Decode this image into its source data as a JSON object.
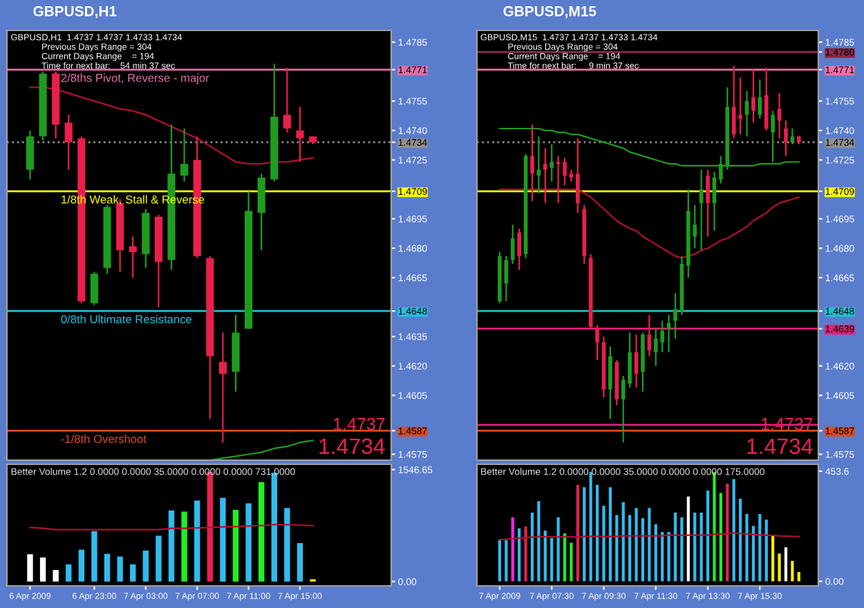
{
  "chart_data": [
    {
      "type": "candlestick",
      "title": "GBPUSD,H1",
      "subtitle": "GBPUSD,H1  1.4737 1.4737 1.4733 1.4734",
      "annotations": [
        "Previous Days Range = 304",
        "Current Days Range    = 194",
        "Time for next bar:    54 min 37 sec",
        "1.4737",
        "1.4734"
      ],
      "categories": [
        null,
        null,
        null,
        null,
        null,
        null,
        null,
        null,
        null,
        null,
        null,
        null,
        null,
        null,
        null,
        null,
        null,
        null,
        null,
        null,
        null,
        null,
        null
      ],
      "ohlc": [
        [
          1.472,
          1.474,
          1.4715,
          1.4737
        ],
        [
          1.4737,
          1.477,
          1.4735,
          1.4769
        ],
        [
          1.4769,
          1.477,
          1.4736,
          1.4743
        ],
        [
          1.4744,
          1.4748,
          1.472,
          1.4734
        ],
        [
          1.4736,
          1.4737,
          1.4652,
          1.4653
        ],
        [
          1.4652,
          1.4668,
          1.4651,
          1.4667
        ],
        [
          1.467,
          1.4702,
          1.4667,
          1.4701
        ],
        [
          1.4703,
          1.4705,
          1.4668,
          1.4679
        ],
        [
          1.4681,
          1.4686,
          1.4665,
          1.4678
        ],
        [
          1.4677,
          1.47,
          1.467,
          1.4698
        ],
        [
          1.4696,
          1.4697,
          1.465,
          1.4673
        ],
        [
          1.4674,
          1.4743,
          1.4669,
          1.4718
        ],
        [
          1.4717,
          1.4741,
          1.4714,
          1.4723
        ],
        [
          1.4725,
          1.4737,
          1.4675,
          1.4676
        ],
        [
          1.4675,
          1.4676,
          1.4593,
          1.4625
        ],
        [
          1.4622,
          1.4637,
          1.4581,
          1.4616
        ],
        [
          1.4617,
          1.4646,
          1.4607,
          1.4637
        ],
        [
          1.4639,
          1.4709,
          1.4639,
          1.4699
        ],
        [
          1.4698,
          1.4718,
          1.4679,
          1.4716
        ],
        [
          1.4715,
          1.4774,
          1.4714,
          1.4747
        ],
        [
          1.4748,
          1.4772,
          1.4739,
          1.4741
        ],
        [
          1.474,
          1.4752,
          1.4724,
          1.4736
        ],
        [
          1.4737,
          1.4737,
          1.4733,
          1.4734
        ]
      ],
      "colors": [
        "#1f9c1f",
        "#1f9c1f",
        "#e8204c",
        "#e8204c",
        "#e8204c",
        "#1f9c1f",
        "#1f9c1f",
        "#e8204c",
        "#e8204c",
        "#1f9c1f",
        "#e8204c",
        "#1f9c1f",
        "#1f9c1f",
        "#e8204c",
        "#e8204c",
        "#e8204c",
        "#1f9c1f",
        "#1f9c1f",
        "#1f9c1f",
        "#1f9c1f",
        "#e8204c",
        "#e8204c",
        "#e8204c"
      ],
      "series": [
        {
          "type": "line",
          "color": "#b01030",
          "values": [
            1.4762,
            1.4762,
            1.4761,
            1.4759,
            1.4757,
            1.4755,
            1.4753,
            1.4751,
            1.475,
            1.4748,
            1.4745,
            1.4742,
            1.4739,
            1.4736,
            1.4732,
            1.4728,
            1.4724,
            1.4723,
            1.4723,
            1.4724,
            1.4724,
            1.4725,
            1.4726
          ]
        },
        {
          "type": "line",
          "color": "#1f9c1f",
          "values": [
            null,
            null,
            null,
            null,
            null,
            null,
            null,
            null,
            null,
            null,
            null,
            null,
            null,
            null,
            1.4572,
            1.4573,
            1.4574,
            1.4575,
            1.4576,
            1.4578,
            1.4579,
            1.4581,
            1.4582
          ]
        }
      ],
      "ref_lines": [
        {
          "axis": "y",
          "value": 1.4771,
          "label": "2/8ths Pivot, Reverse - major",
          "color": "#e070a8"
        },
        {
          "axis": "y",
          "value": 1.4734,
          "color": "#909090",
          "line_style": "dotted"
        },
        {
          "axis": "y",
          "value": 1.4709,
          "label": "1/8th Weak, Stall & Reverse",
          "color": "#ffff00"
        },
        {
          "axis": "y",
          "value": 1.4648,
          "label": "0/8th Ultimate Resistance",
          "color": "#20c0e0"
        },
        {
          "axis": "y",
          "value": 1.4587,
          "label": "-1/8th Overshoot",
          "color": "#d84a20"
        }
      ],
      "ylim": [
        1.4572,
        1.4791
      ],
      "yticks": [
        1.4785,
        1.4771,
        1.4755,
        {
          "value": 1.474,
          "label": "1.4740"
        },
        1.4734,
        1.4725,
        1.4709,
        1.4695,
        {
          "value": 1.468,
          "label": "1.4680"
        },
        1.4665,
        1.4648,
        1.4635,
        {
          "value": 1.462,
          "label": "1.4620"
        },
        1.4605,
        1.4587,
        1.4575
      ],
      "tick_labels": "y",
      "grid": false,
      "legend": false
    },
    {
      "type": "candlestick",
      "title": "GBPUSD,M15",
      "subtitle": "GBPUSD,M15  1.4737 1.4737 1.4733 1.4734",
      "annotations": [
        "Previous Days Range = 304",
        "Current Days Range    = 194",
        "Time for next bar:     9 min 37 sec",
        "1.4737",
        "1.4734"
      ],
      "categories": [
        null,
        null,
        null,
        null,
        null,
        null,
        null,
        null,
        null,
        null,
        null,
        null,
        null,
        null,
        null,
        null,
        null,
        null,
        null,
        null,
        null,
        null,
        null,
        null,
        null,
        null,
        null,
        null,
        null,
        null,
        null,
        null,
        null,
        null,
        null,
        null,
        null,
        null,
        null,
        null,
        null,
        null,
        null,
        null,
        null,
        null,
        null
      ],
      "ohlc": [
        [
          1.4653,
          1.4678,
          1.4652,
          1.4676
        ],
        [
          1.4662,
          1.4676,
          1.4653,
          1.4674
        ],
        [
          1.4674,
          1.4692,
          1.4672,
          1.4685
        ],
        [
          1.4688,
          1.469,
          1.4669,
          1.4676
        ],
        [
          1.4677,
          1.4728,
          1.4675,
          1.4727
        ],
        [
          1.4727,
          1.4743,
          1.4704,
          1.4718
        ],
        [
          1.4717,
          1.4737,
          1.4708,
          1.472
        ],
        [
          1.4723,
          1.4731,
          1.4703,
          1.472
        ],
        [
          1.4721,
          1.4733,
          1.4714,
          1.4724
        ],
        [
          1.4724,
          1.4727,
          1.4703,
          1.4723
        ],
        [
          1.4724,
          1.4726,
          1.4712,
          1.4717
        ],
        [
          1.4718,
          1.472,
          1.4714,
          1.4716
        ],
        [
          1.4718,
          1.4736,
          1.4698,
          1.4703
        ],
        [
          1.47,
          1.4702,
          1.4672,
          1.4676
        ],
        [
          1.4675,
          1.4677,
          1.4639,
          1.464
        ],
        [
          1.4639,
          1.4641,
          1.4623,
          1.4632
        ],
        [
          1.4632,
          1.4635,
          1.4604,
          1.4608
        ],
        [
          1.4608,
          1.463,
          1.4593,
          1.4625
        ],
        [
          1.4622,
          1.4623,
          1.46,
          1.4603
        ],
        [
          1.4603,
          1.4615,
          1.4581,
          1.4613
        ],
        [
          1.4611,
          1.4637,
          1.4609,
          1.4627
        ],
        [
          1.4627,
          1.4636,
          1.4609,
          1.4616
        ],
        [
          1.4617,
          1.4637,
          1.4607,
          1.4636
        ],
        [
          1.4636,
          1.4646,
          1.4625,
          1.4628
        ],
        [
          1.4627,
          1.4639,
          1.462,
          1.4634
        ],
        [
          1.4632,
          1.4643,
          1.4627,
          1.4638
        ],
        [
          1.4639,
          1.4646,
          1.4627,
          1.4642
        ],
        [
          1.4643,
          1.4657,
          1.4634,
          1.4649
        ],
        [
          1.4648,
          1.4676,
          1.4646,
          1.4672
        ],
        [
          1.4671,
          1.471,
          1.4665,
          1.4699
        ],
        [
          1.4686,
          1.4702,
          1.468,
          1.4692
        ],
        [
          1.4703,
          1.472,
          1.4679,
          1.471
        ],
        [
          1.4717,
          1.472,
          1.4686,
          1.4703
        ],
        [
          1.4703,
          1.4719,
          1.4689,
          1.4716
        ],
        [
          1.4715,
          1.4727,
          1.4713,
          1.4723
        ],
        [
          1.4722,
          1.4762,
          1.472,
          1.4752
        ],
        [
          1.4752,
          1.4773,
          1.4736,
          1.4738
        ],
        [
          1.4748,
          1.4767,
          1.4738,
          1.4746
        ],
        [
          1.4748,
          1.476,
          1.4737,
          1.4755
        ],
        [
          1.4757,
          1.4771,
          1.4744,
          1.475
        ],
        [
          1.4748,
          1.4766,
          1.4746,
          1.4757
        ],
        [
          1.4758,
          1.4772,
          1.474,
          1.4741
        ],
        [
          1.4739,
          1.475,
          1.4724,
          1.4748
        ],
        [
          1.4751,
          1.4759,
          1.4736,
          1.4745
        ],
        [
          1.4741,
          1.4745,
          1.4727,
          1.4734
        ],
        [
          1.4734,
          1.4741,
          1.4733,
          1.4737
        ],
        [
          1.4737,
          1.4737,
          1.4733,
          1.4734
        ]
      ],
      "colors": [
        "#1f9c1f",
        "#1f9c1f",
        "#1f9c1f",
        "#e8204c",
        "#1f9c1f",
        "#e8204c",
        "#1f9c1f",
        "#e8204c",
        "#1f9c1f",
        "#e8204c",
        "#e8204c",
        "#e8204c",
        "#e8204c",
        "#e8204c",
        "#e8204c",
        "#e8204c",
        "#e8204c",
        "#1f9c1f",
        "#e8204c",
        "#1f9c1f",
        "#1f9c1f",
        "#e8204c",
        "#1f9c1f",
        "#e8204c",
        "#1f9c1f",
        "#1f9c1f",
        "#1f9c1f",
        "#1f9c1f",
        "#1f9c1f",
        "#1f9c1f",
        "#1f9c1f",
        "#1f9c1f",
        "#e8204c",
        "#1f9c1f",
        "#1f9c1f",
        "#1f9c1f",
        "#e8204c",
        "#e8204c",
        "#1f9c1f",
        "#e8204c",
        "#1f9c1f",
        "#e8204c",
        "#1f9c1f",
        "#e8204c",
        "#e8204c",
        "#1f9c1f",
        "#e8204c"
      ],
      "series": [
        {
          "type": "line",
          "color": "#1f9c1f",
          "values": [
            1.4741,
            1.4741,
            1.4741,
            1.4741,
            1.4741,
            1.4741,
            1.4741,
            1.474,
            1.474,
            1.4739,
            1.4739,
            1.4738,
            1.4738,
            1.4737,
            1.4736,
            1.4735,
            1.4734,
            1.4733,
            1.4732,
            1.4731,
            1.4729,
            1.4728,
            1.4727,
            1.4726,
            1.4725,
            1.4724,
            1.4723,
            1.4723,
            1.4722,
            1.4722,
            1.4722,
            1.4722,
            1.4722,
            1.4722,
            1.4722,
            1.4722,
            1.4722,
            1.4722,
            1.4722,
            1.4722,
            1.4723,
            1.4723,
            1.4723,
            1.4723,
            1.4724,
            1.4724,
            1.4724
          ]
        },
        {
          "type": "line",
          "color": "#b01030",
          "values": [
            1.471,
            1.471,
            1.471,
            1.471,
            1.471,
            1.471,
            1.471,
            1.471,
            1.471,
            1.471,
            1.471,
            1.471,
            1.471,
            1.4708,
            1.4706,
            1.4703,
            1.47,
            1.4697,
            1.4694,
            1.4692,
            1.469,
            1.4689,
            1.4686,
            1.4684,
            1.4682,
            1.468,
            1.4678,
            1.4676,
            1.4675,
            1.4676,
            1.4677,
            1.4679,
            1.468,
            1.4682,
            1.4684,
            1.4685,
            1.4687,
            1.4689,
            1.4691,
            1.4694,
            1.4696,
            1.4698,
            1.4701,
            1.4703,
            1.4704,
            1.4705,
            1.4706
          ]
        }
      ],
      "ref_lines": [
        {
          "axis": "y",
          "value": 1.478,
          "color": "#8a2848"
        },
        {
          "axis": "y",
          "value": 1.4771,
          "color": "#f070a8"
        },
        {
          "axis": "y",
          "value": 1.4734,
          "color": "#909090",
          "line_style": "dotted"
        },
        {
          "axis": "y",
          "value": 1.4709,
          "color": "#ffff00"
        },
        {
          "axis": "y",
          "value": 1.4648,
          "color": "#20c0d0"
        },
        {
          "axis": "y",
          "value": 1.4639,
          "color": "#e0207a"
        },
        {
          "axis": "y",
          "value": 1.459,
          "color": "#e0207a"
        },
        {
          "axis": "y",
          "value": 1.4587,
          "color": "#d84a20"
        }
      ],
      "ylim": [
        1.4572,
        1.4791
      ],
      "yticks": [
        1.4785,
        {
          "value": 1.478,
          "label": "1.4780"
        },
        1.4771,
        1.4755,
        {
          "value": 1.474,
          "label": "1.4740"
        },
        1.4734,
        1.4725,
        1.4709,
        1.4695,
        {
          "value": 1.468,
          "label": "1.4680"
        },
        1.4665,
        1.4648,
        1.4639,
        {
          "value": 1.462,
          "label": "1.4620"
        },
        1.4605,
        1.4587,
        1.4575
      ],
      "tick_labels": "y",
      "grid": false,
      "legend": false
    },
    {
      "type": "bar",
      "title": "Better Volume 1.2 0.0000 0.0000 35.0000 0.0000 0.0000 731.0000",
      "categories": [
        "6 Apr 2009",
        null,
        null,
        null,
        null,
        "6 Apr 23:00",
        null,
        null,
        null,
        "7 Apr 03:00",
        null,
        null,
        null,
        "7 Apr 07:00",
        null,
        null,
        null,
        "7 Apr 11:00",
        null,
        null,
        null,
        "7 Apr 15:00",
        null
      ],
      "values": [
        377,
        332,
        160,
        237,
        441,
        697,
        383,
        345,
        237,
        428,
        633,
        984,
        965,
        1118,
        1514,
        1157,
        991,
        1080,
        1374,
        1502,
        1016,
        531,
        32
      ],
      "colors": [
        "#ffffff",
        "#ffffff",
        "#ffffff",
        "#33bbee",
        "#33bbee",
        "#33bbee",
        "#33bbee",
        "#33bbee",
        "#33bbee",
        "#33bbee",
        "#33bbee",
        "#33bbee",
        "#22ee22",
        "#33bbee",
        "#e8204c",
        "#33bbee",
        "#22ee22",
        "#33bbee",
        "#22ee22",
        "#33bbee",
        "#33bbee",
        "#33bbee",
        "#ffee00"
      ],
      "series": [
        {
          "type": "line",
          "color": "#b01030",
          "values": [
            748,
            735,
            716,
            716,
            716,
            716,
            716,
            716,
            716,
            716,
            716,
            735,
            735,
            741,
            748,
            754,
            760,
            767,
            773,
            786,
            786,
            780,
            773
          ]
        }
      ],
      "ylim": [
        -60,
        1620
      ],
      "yticks": [
        1546.65,
        {
          "value": 0,
          "label": "0.00"
        }
      ],
      "grid": false,
      "legend": false
    },
    {
      "type": "bar",
      "title": "Better Volume 1.2 0.0000 0.0000 35.0000 0.0000 0.0000 175.0000",
      "categories": [
        "7 Apr 2009",
        null,
        null,
        null,
        null,
        null,
        null,
        null,
        "7 Apr 07:30",
        null,
        null,
        null,
        null,
        null,
        null,
        null,
        "7 Apr 09:30",
        null,
        null,
        null,
        null,
        null,
        null,
        null,
        "7 Apr 11:30",
        null,
        null,
        null,
        null,
        null,
        null,
        null,
        "7 Apr 13:30",
        null,
        null,
        null,
        null,
        null,
        null,
        null,
        "7 Apr 15:30",
        null,
        null,
        null,
        null,
        null,
        null
      ],
      "values": [
        169,
        169,
        264,
        218,
        226,
        283,
        330,
        209,
        178,
        264,
        197,
        159,
        397,
        387,
        450,
        397,
        311,
        387,
        273,
        326,
        273,
        302,
        260,
        302,
        235,
        203,
        203,
        283,
        264,
        349,
        283,
        283,
        374,
        450,
        364,
        402,
        421,
        340,
        277,
        228,
        277,
        254,
        188,
        114,
        140,
        84,
        38
      ],
      "colors": [
        "#33bbee",
        "#33bbee",
        "#ff22ee",
        "#33bbee",
        "#e8204c",
        "#33bbee",
        "#33bbee",
        "#33bbee",
        "#33bbee",
        "#33bbee",
        "#22ee22",
        "#22ee22",
        "#e8204c",
        "#33bbee",
        "#33bbee",
        "#33bbee",
        "#33bbee",
        "#33bbee",
        "#33bbee",
        "#33bbee",
        "#33bbee",
        "#33bbee",
        "#33bbee",
        "#33bbee",
        "#33bbee",
        "#33bbee",
        "#33bbee",
        "#33bbee",
        "#33bbee",
        "#ffffff",
        "#33bbee",
        "#33bbee",
        "#33bbee",
        "#22ee22",
        "#22ee22",
        "#e8204c",
        "#33bbee",
        "#33bbee",
        "#33bbee",
        "#33bbee",
        "#33bbee",
        "#33bbee",
        "#ffee00",
        "#ffee00",
        "#ffffff",
        "#ffee00",
        "#ffee00"
      ],
      "series": [
        {
          "type": "line",
          "color": "#b01030",
          "values": [
            171,
            173,
            176,
            178,
            180,
            182,
            184,
            183,
            183,
            183,
            183,
            183,
            183,
            185,
            185,
            185,
            185,
            185,
            185,
            187,
            187,
            187,
            187,
            187,
            187,
            187,
            190,
            190,
            190,
            190,
            190,
            190,
            190,
            194,
            195,
            197,
            199,
            197,
            195,
            193,
            191,
            190,
            189,
            187,
            186,
            185,
            184
          ]
        }
      ],
      "ylim": [
        -19,
        482
      ],
      "yticks": [
        453.6,
        {
          "value": 0,
          "label": "0.00"
        }
      ],
      "grid": false,
      "legend": false
    }
  ]
}
